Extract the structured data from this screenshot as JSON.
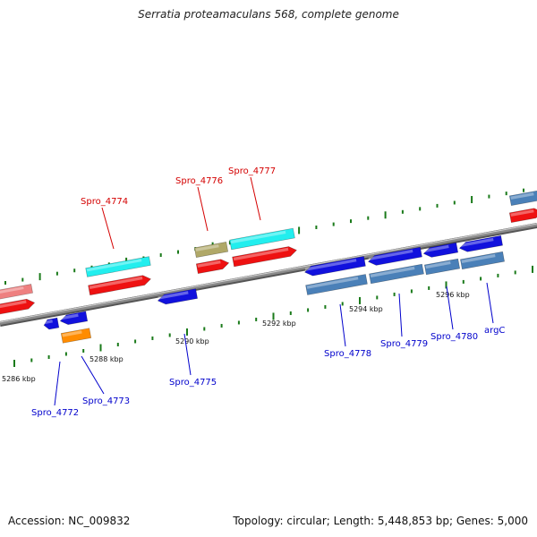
{
  "title": "Serratia proteamaculans 568, complete genome",
  "footer": {
    "accession": "Accession: NC_009832",
    "summary": "Topology: circular; Length: 5,448,853 bp; Genes: 5,000"
  },
  "colors": {
    "backbone": "#8a8a8a",
    "tick": "#1a7a1a",
    "label_forward": "#d40000",
    "label_reverse": "#0000cc",
    "cds_red": "#ee1111",
    "cds_cyan": "#22eeee",
    "cds_blue": "#1111dd",
    "cds_steel": "#4a80b8",
    "cds_pink": "#ee8080",
    "cds_khaki": "#b0a868",
    "cds_orange": "#ff8c00"
  },
  "scale": {
    "unit": "kbp",
    "labels": [
      {
        "text": "5286 kbp"
      },
      {
        "text": "5288 kbp"
      },
      {
        "text": "5290 kbp"
      },
      {
        "text": "5292 kbp"
      },
      {
        "text": "5294 kbp"
      },
      {
        "text": "5296 kbp"
      }
    ]
  },
  "gene_labels": [
    {
      "text": "Spro_4774",
      "strand": "forward"
    },
    {
      "text": "Spro_4776",
      "strand": "forward"
    },
    {
      "text": "Spro_4777",
      "strand": "forward"
    },
    {
      "text": "Spro_4772",
      "strand": "reverse"
    },
    {
      "text": "Spro_4773",
      "strand": "reverse"
    },
    {
      "text": "Spro_4775",
      "strand": "reverse"
    },
    {
      "text": "Spro_4778",
      "strand": "reverse"
    },
    {
      "text": "Spro_4779",
      "strand": "reverse"
    },
    {
      "text": "Spro_4780",
      "strand": "reverse"
    },
    {
      "text": "argC",
      "strand": "reverse"
    }
  ]
}
